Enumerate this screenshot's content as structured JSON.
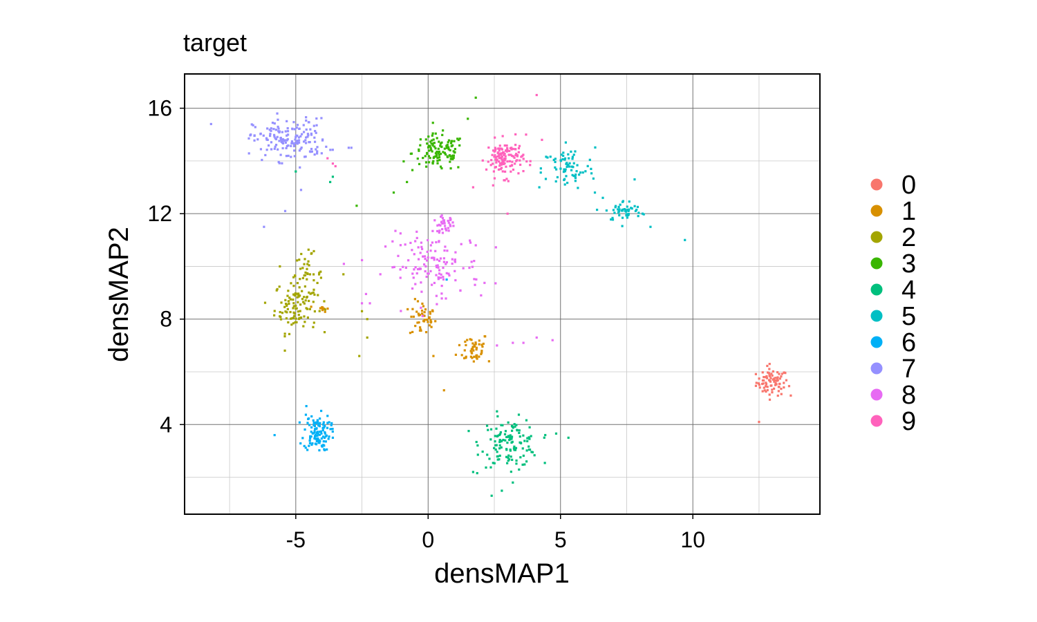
{
  "chart_data": {
    "type": "scatter",
    "title": "target",
    "xlabel": "densMAP1",
    "ylabel": "densMAP2",
    "xlim": [
      -9.2,
      14.8
    ],
    "ylim": [
      0.6,
      17.3
    ],
    "xticks": [
      -5,
      0,
      5,
      10
    ],
    "xtick_labels": [
      "-5",
      "0",
      "5",
      "10"
    ],
    "yticks": [
      4,
      8,
      12,
      16
    ],
    "ytick_labels": [
      "4",
      "8",
      "12",
      "16"
    ],
    "grid": true,
    "legend_position": "right",
    "series": [
      {
        "name": "0",
        "color": "#F8766D",
        "clusters": [
          {
            "cx": 13.0,
            "cy": 5.6,
            "sx": 0.3,
            "sy": 0.25,
            "n": 80
          }
        ],
        "points": [
          [
            12.5,
            4.1
          ],
          [
            13.7,
            5.1
          ],
          [
            12.9,
            6.3
          ]
        ]
      },
      {
        "name": "1",
        "color": "#D89000",
        "clusters": [
          {
            "cx": -0.2,
            "cy": 8.0,
            "sx": 0.25,
            "sy": 0.35,
            "n": 45
          },
          {
            "cx": 1.7,
            "cy": 6.9,
            "sx": 0.3,
            "sy": 0.3,
            "n": 45
          },
          {
            "cx": -4.0,
            "cy": 8.4,
            "sx": 0.12,
            "sy": 0.06,
            "n": 10
          }
        ],
        "points": [
          [
            0.6,
            5.3
          ],
          [
            0.2,
            6.6
          ],
          [
            2.3,
            6.4
          ]
        ]
      },
      {
        "name": "2",
        "color": "#A3A500",
        "clusters": [
          {
            "cx": -5.0,
            "cy": 8.5,
            "sx": 0.4,
            "sy": 0.5,
            "n": 100
          },
          {
            "cx": -4.6,
            "cy": 9.7,
            "sx": 0.3,
            "sy": 0.4,
            "n": 40
          }
        ],
        "points": [
          [
            -2.3,
            8.0
          ],
          [
            -2.5,
            8.3
          ],
          [
            -2.6,
            6.6
          ],
          [
            -2.3,
            7.3
          ],
          [
            -3.2,
            9.7
          ],
          [
            -5.6,
            10.0
          ],
          [
            -4.4,
            10.5
          ]
        ]
      },
      {
        "name": "3",
        "color": "#39B600",
        "clusters": [
          {
            "cx": 0.4,
            "cy": 14.3,
            "sx": 0.5,
            "sy": 0.35,
            "n": 120
          }
        ],
        "points": [
          [
            1.8,
            16.4
          ],
          [
            -1.3,
            12.8
          ],
          [
            -0.8,
            13.2
          ],
          [
            -2.7,
            12.3
          ],
          [
            1.5,
            15.6
          ]
        ]
      },
      {
        "name": "4",
        "color": "#00BF7D",
        "clusters": [
          {
            "cx": 3.1,
            "cy": 3.3,
            "sx": 0.55,
            "sy": 0.45,
            "n": 130
          }
        ],
        "points": [
          [
            2.4,
            1.3
          ],
          [
            1.7,
            2.2
          ],
          [
            5.3,
            3.5
          ],
          [
            2.6,
            4.5
          ],
          [
            3.2,
            1.8
          ],
          [
            -5.0,
            13.6
          ],
          [
            -3.6,
            13.4
          ],
          [
            -3.7,
            13.2
          ]
        ]
      },
      {
        "name": "5",
        "color": "#00BFC4",
        "clusters": [
          {
            "cx": 5.3,
            "cy": 13.7,
            "sx": 0.5,
            "sy": 0.4,
            "n": 70
          },
          {
            "cx": 7.4,
            "cy": 12.1,
            "sx": 0.35,
            "sy": 0.2,
            "n": 50
          }
        ],
        "points": [
          [
            9.7,
            11.0
          ],
          [
            8.4,
            11.5
          ],
          [
            6.6,
            12.6
          ],
          [
            6.3,
            12.8
          ],
          [
            4.2,
            13.0
          ],
          [
            5.2,
            14.7
          ],
          [
            7.8,
            13.3
          ],
          [
            8.1,
            12.0
          ]
        ]
      },
      {
        "name": "6",
        "color": "#00B0F6",
        "clusters": [
          {
            "cx": -4.2,
            "cy": 3.7,
            "sx": 0.25,
            "sy": 0.35,
            "n": 110
          }
        ],
        "points": [
          [
            -5.8,
            3.6
          ],
          [
            -4.6,
            4.7
          ],
          [
            0.7,
            9.5
          ],
          [
            -3.6,
            3.5
          ]
        ]
      },
      {
        "name": "7",
        "color": "#9590FF",
        "clusters": [
          {
            "cx": -5.2,
            "cy": 14.8,
            "sx": 0.7,
            "sy": 0.4,
            "n": 160
          }
        ],
        "points": [
          [
            -8.2,
            15.4
          ],
          [
            -6.2,
            11.5
          ],
          [
            -5.4,
            12.1
          ],
          [
            -4.8,
            12.9
          ],
          [
            -3.0,
            14.5
          ],
          [
            -2.9,
            14.5
          ],
          [
            -6.7,
            15.0
          ],
          [
            -5.7,
            15.8
          ]
        ]
      },
      {
        "name": "8",
        "color": "#E76BF3",
        "clusters": [
          {
            "cx": 0.2,
            "cy": 10.0,
            "sx": 0.9,
            "sy": 0.6,
            "n": 130
          },
          {
            "cx": 0.6,
            "cy": 11.6,
            "sx": 0.2,
            "sy": 0.15,
            "n": 35
          }
        ],
        "points": [
          [
            2.6,
            7.0
          ],
          [
            3.2,
            7.1
          ],
          [
            3.6,
            7.1
          ],
          [
            4.1,
            7.3
          ],
          [
            4.7,
            7.2
          ],
          [
            -2.2,
            8.6
          ],
          [
            -2.5,
            8.6
          ],
          [
            1.8,
            10.8
          ],
          [
            1.6,
            10.9
          ],
          [
            2.0,
            8.9
          ]
        ]
      },
      {
        "name": "9",
        "color": "#FF62BC",
        "clusters": [
          {
            "cx": 2.9,
            "cy": 14.1,
            "sx": 0.35,
            "sy": 0.35,
            "n": 130
          }
        ],
        "points": [
          [
            4.1,
            16.5
          ],
          [
            3.7,
            15.0
          ],
          [
            4.3,
            14.8
          ],
          [
            3.0,
            12.0
          ],
          [
            1.7,
            13.0
          ],
          [
            -3.8,
            14.1
          ],
          [
            -3.6,
            13.9
          ],
          [
            -3.5,
            13.8
          ]
        ]
      }
    ]
  }
}
